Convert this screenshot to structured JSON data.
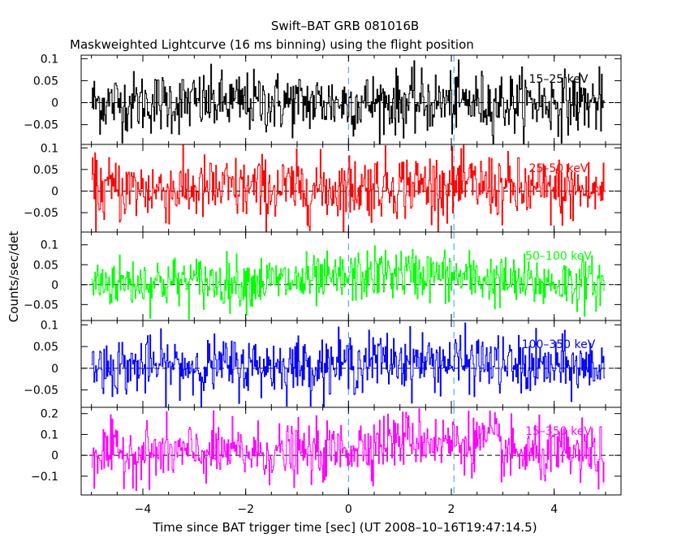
{
  "chart_data": {
    "type": "line",
    "title": "Swift–BAT GRB 081016B",
    "subtitle": "Maskweighted Lightcurve (16 ms binning) using the flight position",
    "xlabel": "Time since BAT trigger time [sec] (UT 2008–10–16T19:47:14.5)",
    "ylabel": "Counts/sec/det",
    "xlim": [
      -5.2,
      5.3
    ],
    "x_ticks": [
      -4,
      -2,
      0,
      2,
      4
    ],
    "x_tick_labels": [
      "−4",
      "−2",
      "0",
      "2",
      "4"
    ],
    "bin_width_sec": 0.016,
    "x_range_data": [
      -5.0,
      4.98
    ],
    "vertical_markers": [
      0,
      2.05
    ],
    "grid": false,
    "panels": [
      {
        "name": "15–25 keV",
        "color": "#000000",
        "ylim": [
          -0.095,
          0.108
        ],
        "y_ticks": [
          -0.05,
          0,
          0.05,
          0.1
        ],
        "y_tick_labels": [
          "−0.05",
          "0",
          "0.05",
          "0.1"
        ],
        "noise_sigma": 0.035,
        "profile": [
          [
            -5,
            0
          ],
          [
            5,
            0
          ]
        ]
      },
      {
        "name": "25–50 keV",
        "color": "#ff0000",
        "ylim": [
          -0.095,
          0.108
        ],
        "y_ticks": [
          -0.05,
          0,
          0.05,
          0.1
        ],
        "y_tick_labels": [
          "−0.05",
          "0",
          "0.05",
          "0.1"
        ],
        "noise_sigma": 0.038,
        "profile": [
          [
            -5,
            0.003
          ],
          [
            -0.5,
            0.005
          ],
          [
            0.8,
            0.015
          ],
          [
            2.8,
            0.012
          ],
          [
            3.2,
            0.0
          ],
          [
            5,
            0.0
          ]
        ]
      },
      {
        "name": "50–100 keV",
        "color": "#00ff00",
        "ylim": [
          -0.09,
          0.132
        ],
        "y_ticks": [
          -0.05,
          0,
          0.05,
          0.1
        ],
        "y_tick_labels": [
          "−0.05",
          "0",
          "0.05",
          "0.1"
        ],
        "noise_sigma": 0.032,
        "profile": [
          [
            -5,
            0.006
          ],
          [
            -0.5,
            0.008
          ],
          [
            0.7,
            0.03
          ],
          [
            1.6,
            0.025
          ],
          [
            2.8,
            0.012
          ],
          [
            3.2,
            0.004
          ],
          [
            5,
            0.004
          ]
        ]
      },
      {
        "name": "100–350 keV",
        "color": "#0000ff",
        "ylim": [
          -0.09,
          0.11
        ],
        "y_ticks": [
          -0.05,
          0,
          0.05,
          0.1
        ],
        "y_tick_labels": [
          "−0.05",
          "0",
          "0.05",
          "0.1"
        ],
        "noise_sigma": 0.033,
        "profile": [
          [
            -5,
            0.004
          ],
          [
            -0.5,
            0.006
          ],
          [
            0.7,
            0.018
          ],
          [
            2.8,
            0.012
          ],
          [
            3.2,
            0.002
          ],
          [
            5,
            0.002
          ]
        ]
      },
      {
        "name": "15–350 keV",
        "color": "#ff00ff",
        "ylim": [
          -0.19,
          0.23
        ],
        "y_ticks": [
          -0.1,
          0,
          0.1,
          0.2
        ],
        "y_tick_labels": [
          "−0.1",
          "0",
          "0.1",
          "0.2"
        ],
        "noise_sigma": 0.068,
        "profile": [
          [
            -5,
            0.01
          ],
          [
            -0.5,
            0.012
          ],
          [
            0.5,
            0.06
          ],
          [
            1.2,
            0.085
          ],
          [
            2.0,
            0.06
          ],
          [
            2.85,
            0.07
          ],
          [
            3.05,
            0.005
          ],
          [
            5,
            0.0
          ]
        ]
      }
    ]
  }
}
